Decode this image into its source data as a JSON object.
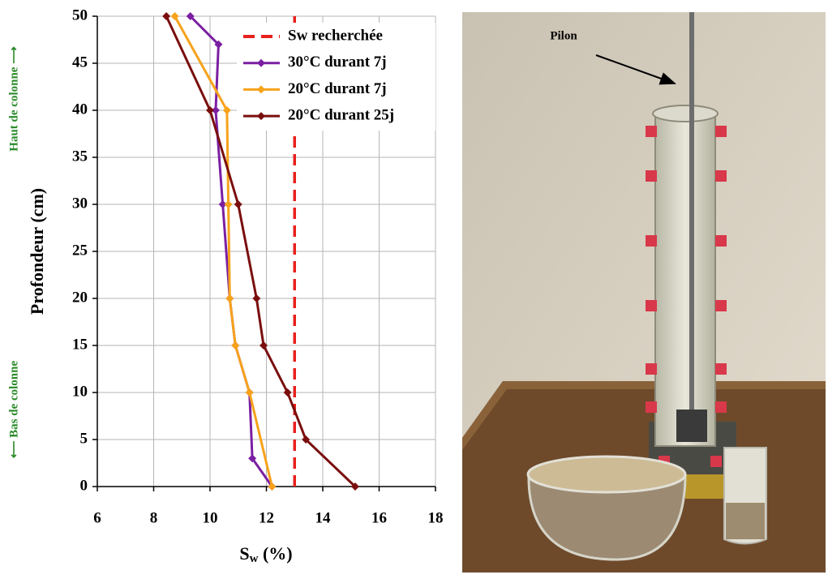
{
  "chart_data": {
    "type": "line",
    "xlabel": [
      "S",
      "w",
      " (%)"
    ],
    "ylabel": "Profondeur (cm)",
    "annotations": [
      "Haut de colonne ⟶",
      "⟵ Bas de colonne"
    ],
    "xlim": [
      6,
      18
    ],
    "xticks": [
      6,
      8,
      10,
      12,
      14,
      16,
      18
    ],
    "ylim": [
      0,
      50
    ],
    "yticks": [
      0,
      5,
      10,
      15,
      20,
      25,
      30,
      35,
      40,
      45,
      50
    ],
    "grid": true,
    "legend": "upper right",
    "series": [
      {
        "name": "Sw recherchée",
        "color": "#e8201c",
        "dashed": true,
        "x": [
          13,
          13
        ],
        "values": [
          0,
          50
        ]
      },
      {
        "name": "30°C durant 7j",
        "color": "#7b1fa2",
        "marker": "diamond",
        "x": [
          9.3,
          10.3,
          10.2,
          10.45,
          10.7,
          10.9,
          11.4,
          11.5,
          12.2
        ],
        "values": [
          50,
          47,
          40,
          30,
          20,
          15,
          10,
          3,
          0
        ]
      },
      {
        "name": "20°C durant 7j",
        "color": "#f7a21b",
        "marker": "diamond",
        "x": [
          8.75,
          10.6,
          10.65,
          10.7,
          10.9,
          11.4,
          12.2
        ],
        "values": [
          50,
          40,
          30,
          20,
          15,
          10,
          0
        ]
      },
      {
        "name": "20°C durant 25j",
        "color": "#7a0e0e",
        "marker": "diamond",
        "x": [
          8.45,
          10.0,
          11.0,
          11.65,
          11.9,
          12.75,
          13.4,
          15.15
        ],
        "values": [
          50,
          40,
          30,
          20,
          15,
          10,
          5,
          0
        ]
      }
    ]
  },
  "photo": {
    "label": "Pilon"
  }
}
